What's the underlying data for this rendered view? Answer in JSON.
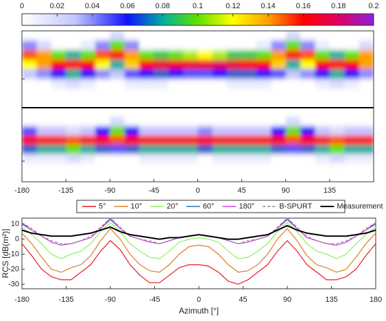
{
  "chart_data": [
    {
      "type": "heatmap",
      "x": [
        -180,
        -165,
        -150,
        -135,
        -120,
        -105,
        -90,
        -75,
        -60,
        -45,
        -30,
        -15,
        0,
        15,
        30,
        45,
        60,
        75,
        90,
        105,
        120,
        135,
        150,
        165
      ],
      "xlim": [
        -180,
        180
      ],
      "xticks": [
        -180,
        -135,
        -90,
        -45,
        0,
        45,
        90,
        135
      ],
      "clim": [
        0,
        0.2
      ],
      "cticks": [
        0,
        0.02,
        0.04,
        0.06,
        0.08,
        0.1,
        0.12,
        0.14,
        0.16,
        0.18,
        0.2
      ],
      "panels": [
        {
          "z": [
            [
              0,
              0.04,
              0.15,
              0.12,
              0.03,
              0,
              0,
              0
            ],
            [
              0,
              0.02,
              0.14,
              0.14,
              0.04,
              0,
              0,
              0
            ],
            [
              0,
              0,
              0.1,
              0.16,
              0.06,
              0.01,
              0,
              0
            ],
            [
              0,
              0,
              0.08,
              0.16,
              0.08,
              0.02,
              0,
              0
            ],
            [
              0,
              0.01,
              0.1,
              0.16,
              0.06,
              0.01,
              0,
              0
            ],
            [
              0,
              0.04,
              0.15,
              0.12,
              0.04,
              0,
              0,
              0
            ],
            [
              0.02,
              0.1,
              0.16,
              0.08,
              0.03,
              0,
              0,
              0
            ],
            [
              0,
              0.04,
              0.14,
              0.13,
              0.05,
              0.01,
              0,
              0
            ],
            [
              0,
              0,
              0.1,
              0.16,
              0.06,
              0.01,
              0,
              0
            ],
            [
              0,
              0,
              0.09,
              0.17,
              0.07,
              0.01,
              0,
              0
            ],
            [
              0,
              0,
              0.1,
              0.17,
              0.06,
              0,
              0,
              0
            ],
            [
              0,
              0,
              0.11,
              0.17,
              0.05,
              0,
              0,
              0
            ],
            [
              0,
              0,
              0.12,
              0.17,
              0.05,
              0,
              0,
              0
            ],
            [
              0,
              0,
              0.11,
              0.18,
              0.06,
              0,
              0,
              0
            ],
            [
              0,
              0,
              0.09,
              0.17,
              0.07,
              0.01,
              0,
              0
            ],
            [
              0,
              0,
              0.09,
              0.16,
              0.07,
              0.01,
              0,
              0
            ],
            [
              0,
              0.01,
              0.1,
              0.16,
              0.06,
              0.01,
              0,
              0
            ],
            [
              0,
              0.04,
              0.14,
              0.13,
              0.05,
              0,
              0,
              0
            ],
            [
              0.02,
              0.1,
              0.16,
              0.08,
              0.03,
              0,
              0,
              0
            ],
            [
              0,
              0.04,
              0.15,
              0.12,
              0.04,
              0,
              0,
              0
            ],
            [
              0,
              0.01,
              0.1,
              0.16,
              0.06,
              0.01,
              0,
              0
            ],
            [
              0,
              0,
              0.08,
              0.16,
              0.08,
              0.02,
              0,
              0
            ],
            [
              0,
              0,
              0.1,
              0.16,
              0.06,
              0.01,
              0,
              0
            ],
            [
              0,
              0.02,
              0.14,
              0.14,
              0.04,
              0,
              0,
              0
            ]
          ]
        },
        {
          "z": [
            [
              0,
              0,
              0.05,
              0.16,
              0.07,
              0.01,
              0,
              0
            ],
            [
              0,
              0,
              0.03,
              0.16,
              0.08,
              0.01,
              0,
              0
            ],
            [
              0,
              0,
              0.03,
              0.16,
              0.08,
              0.01,
              0,
              0
            ],
            [
              0,
              0,
              0.02,
              0.15,
              0.1,
              0.02,
              0,
              0
            ],
            [
              0,
              0,
              0.03,
              0.16,
              0.08,
              0.01,
              0,
              0
            ],
            [
              0,
              0,
              0.06,
              0.16,
              0.07,
              0,
              0,
              0
            ],
            [
              0,
              0.02,
              0.1,
              0.15,
              0.05,
              0,
              0,
              0
            ],
            [
              0,
              0,
              0.06,
              0.16,
              0.07,
              0,
              0,
              0
            ],
            [
              0,
              0,
              0.03,
              0.16,
              0.08,
              0.01,
              0,
              0
            ],
            [
              0,
              0,
              0.03,
              0.16,
              0.08,
              0.01,
              0,
              0
            ],
            [
              0,
              0,
              0.03,
              0.16,
              0.08,
              0.01,
              0,
              0
            ],
            [
              0,
              0,
              0.03,
              0.16,
              0.08,
              0.01,
              0,
              0
            ],
            [
              0,
              0,
              0.04,
              0.16,
              0.07,
              0,
              0,
              0
            ],
            [
              0,
              0,
              0.03,
              0.16,
              0.08,
              0.01,
              0,
              0
            ],
            [
              0,
              0,
              0.03,
              0.16,
              0.08,
              0.01,
              0,
              0
            ],
            [
              0,
              0,
              0.03,
              0.16,
              0.08,
              0.01,
              0,
              0
            ],
            [
              0,
              0,
              0.03,
              0.16,
              0.08,
              0.01,
              0,
              0
            ],
            [
              0,
              0,
              0.06,
              0.16,
              0.07,
              0,
              0,
              0
            ],
            [
              0,
              0.02,
              0.1,
              0.15,
              0.05,
              0,
              0,
              0
            ],
            [
              0,
              0,
              0.06,
              0.16,
              0.07,
              0,
              0,
              0
            ],
            [
              0,
              0,
              0.03,
              0.16,
              0.08,
              0.01,
              0,
              0
            ],
            [
              0,
              0,
              0.02,
              0.15,
              0.1,
              0.02,
              0,
              0
            ],
            [
              0,
              0,
              0.03,
              0.16,
              0.08,
              0.01,
              0,
              0
            ],
            [
              0,
              0,
              0.03,
              0.16,
              0.08,
              0.01,
              0,
              0
            ]
          ]
        }
      ]
    },
    {
      "type": "line",
      "x": [
        -180,
        -170,
        -160,
        -150,
        -140,
        -130,
        -120,
        -110,
        -100,
        -90,
        -80,
        -70,
        -60,
        -50,
        -40,
        -30,
        -20,
        -10,
        0,
        10,
        20,
        30,
        40,
        50,
        60,
        70,
        80,
        90,
        100,
        110,
        120,
        130,
        140,
        150,
        160,
        170,
        180
      ],
      "xlim": [
        -180,
        180
      ],
      "xticks": [
        -180,
        -135,
        -90,
        -45,
        0,
        45,
        90,
        135,
        180
      ],
      "ylim": [
        -33,
        14
      ],
      "yticks": [
        -30,
        -20,
        -10,
        0,
        10
      ],
      "xlabel": "Azimuth [°]",
      "ylabel": "RCS [dB(m²)]",
      "legend": "top",
      "series": [
        {
          "name": "5°",
          "color": "#e8191c",
          "values": [
            -3,
            -11,
            -20,
            -25,
            -27,
            -27,
            -22,
            -17,
            -8,
            -1,
            -7,
            -17,
            -24,
            -29,
            -29,
            -24,
            -19,
            -17,
            -17,
            -18,
            -22,
            -28,
            -30,
            -27,
            -22,
            -17,
            -8,
            -1,
            -8,
            -17,
            -22,
            -27,
            -27,
            -25,
            -20,
            -11,
            -3
          ]
        },
        {
          "name": "10°",
          "color": "#dd7d1e",
          "values": [
            4,
            -3,
            -12,
            -20,
            -22,
            -19,
            -17,
            -11,
            -1,
            7,
            0,
            -10,
            -17,
            -21,
            -22,
            -17,
            -10,
            -5,
            -4,
            -5,
            -10,
            -17,
            -22,
            -21,
            -17,
            -10,
            0,
            7,
            -1,
            -11,
            -17,
            -19,
            -22,
            -20,
            -12,
            -3,
            4
          ]
        },
        {
          "name": "20°",
          "color": "#8ef060",
          "values": [
            8,
            3,
            -3,
            -10,
            -13,
            -10,
            -8,
            -3,
            5,
            11,
            5,
            -3,
            -8,
            -12,
            -13,
            -8,
            -2,
            0,
            1,
            0,
            -2,
            -8,
            -13,
            -12,
            -8,
            -3,
            5,
            11,
            5,
            -3,
            -8,
            -10,
            -13,
            -10,
            -3,
            3,
            8
          ]
        },
        {
          "name": "60°",
          "color": "#2e6db4",
          "values": [
            10,
            6,
            2,
            -2,
            -4,
            -3,
            -1,
            1,
            7,
            13,
            7,
            2,
            0,
            -2,
            -3,
            -1,
            1,
            2,
            3,
            2,
            1,
            -1,
            -3,
            -2,
            0,
            2,
            7,
            13,
            7,
            1,
            -1,
            -3,
            -4,
            -2,
            2,
            6,
            10
          ]
        },
        {
          "name": "180°",
          "color": "#e040e0",
          "values": [
            11,
            6,
            2,
            -2,
            -4,
            -3,
            -1,
            1,
            7,
            14,
            7,
            2,
            0,
            -2,
            -3,
            -1,
            1,
            2,
            3,
            2,
            1,
            -1,
            -3,
            -2,
            0,
            2,
            7,
            14,
            7,
            1,
            -1,
            -3,
            -4,
            -2,
            2,
            6,
            11
          ]
        },
        {
          "name": "B-SPURT",
          "color": "#888888",
          "linestyle": "dashed",
          "values": [
            11,
            7,
            2,
            -1,
            -3,
            -3,
            -1,
            2,
            8,
            14,
            8,
            2,
            0,
            -1,
            -3,
            -1,
            1,
            2,
            3,
            2,
            1,
            -1,
            -3,
            -1,
            0,
            2,
            8,
            14,
            8,
            2,
            -1,
            -3,
            -3,
            -1,
            2,
            7,
            11
          ]
        },
        {
          "name": "Measurement",
          "color": "#000000",
          "linewidth": 2,
          "values": [
            6,
            4,
            3,
            2,
            2,
            2,
            3,
            4,
            6,
            8,
            5,
            3,
            2,
            1,
            0,
            1,
            1,
            2,
            3,
            2,
            1,
            0,
            0,
            1,
            2,
            3,
            6,
            9,
            6,
            4,
            3,
            2,
            2,
            2,
            3,
            4,
            6
          ]
        }
      ]
    }
  ]
}
